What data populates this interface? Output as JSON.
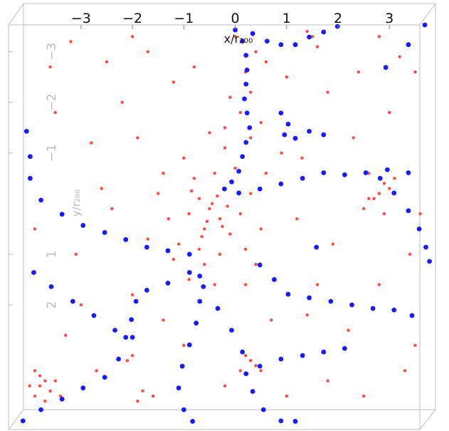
{
  "chart_data": {
    "type": "scatter",
    "x_label": "x/r₂₀₀",
    "y_label": "y/r₂₀₀",
    "xlim": [
      -4.3,
      3.8
    ],
    "ylim": [
      -3.6,
      4.35
    ],
    "y_inverted": true,
    "xticks": [
      {
        "value": -3,
        "label": "−3"
      },
      {
        "value": -2,
        "label": "−2"
      },
      {
        "value": -1,
        "label": "−1"
      },
      0,
      1,
      2,
      3
    ],
    "yticks": [
      {
        "value": -3,
        "label": "−3"
      },
      {
        "value": -2,
        "label": "−2"
      },
      {
        "value": -1,
        "label": "−1"
      },
      1,
      2
    ],
    "series": [
      {
        "color": "#ff2a1f",
        "x": [
          -0.5,
          -0.3,
          -0.7,
          -0.2,
          -0.6,
          -0.9,
          -0.1,
          -0.4,
          -1.1,
          0.1,
          -0.8,
          -0.3,
          -1.3,
          0.3,
          -0.6,
          0.2,
          -1.0,
          -0.2,
          -1.5,
          0.5,
          -0.7,
          -0.45,
          -0.55,
          -0.35,
          -0.65,
          -0.25,
          -0.85,
          -0.15,
          -1.2,
          0.4,
          -0.9,
          -0.5,
          0.0,
          -1.7,
          0.6,
          -0.4,
          -1.4,
          0.2,
          0.1,
          0.3,
          0.2,
          0.4,
          0.0,
          0.6,
          -0.1,
          0.5,
          0.3,
          -0.2,
          1.5,
          1.6,
          1.4,
          2.9,
          3.0,
          2.8,
          2.6,
          2.7,
          3.1,
          2.5,
          2.9,
          2.6,
          -3.8,
          -3.7,
          -3.9,
          -3.6,
          -3.8,
          -3.5,
          -4.0,
          -3.7,
          -3.4,
          -3.9,
          0.3,
          0.4,
          0.2,
          0.5,
          0.1,
          -1.8,
          -1.6,
          -1.9,
          -2.0,
          -2.1,
          -3.2,
          -2.5,
          -1.7,
          -3.5,
          -2.8,
          -2.2,
          -1.2,
          -3.9,
          -3.1,
          -2.4,
          -2.0,
          -3.3,
          -2.7,
          -1.0,
          -0.2,
          1.0,
          1.8,
          2.5,
          3.3,
          3.5,
          2.2,
          1.4,
          2.8,
          3.4,
          1.9,
          1.2,
          2.3,
          3.0,
          3.5,
          2.4,
          1.8,
          2.8,
          1.0,
          -0.8,
          -1.9,
          -2.6,
          -3.0,
          -1.4,
          0.7,
          1.6,
          3.6,
          0.9,
          1.3,
          -3.6,
          -2.0,
          3.2
        ],
        "y": [
          0.1,
          0.3,
          -0.1,
          -0.3,
          0.5,
          0.2,
          0.6,
          -0.6,
          0.8,
          0.2,
          -0.5,
          1.0,
          0.3,
          -0.2,
          1.2,
          0.9,
          -0.9,
          -1.1,
          -0.2,
          0.5,
          0.9,
          0.0,
          0.35,
          -0.15,
          0.65,
          0.45,
          -0.25,
          0.05,
          1.1,
          1.2,
          1.5,
          -1.4,
          -0.7,
          0.7,
          -0.6,
          1.6,
          -0.6,
          1.6,
          -1.8,
          -2.2,
          -2.6,
          -3.0,
          -3.3,
          -2.8,
          -2.1,
          -1.6,
          -1.3,
          -1.5,
          -3.3,
          -3.1,
          -3.4,
          -0.4,
          -0.3,
          -0.2,
          -0.6,
          -0.1,
          -0.5,
          0.1,
          0.2,
          -0.1,
          3.6,
          3.5,
          3.8,
          3.7,
          3.4,
          3.5,
          3.6,
          3.9,
          3.8,
          3.3,
          3.1,
          3.2,
          3.0,
          3.3,
          3.3,
          3.7,
          3.8,
          3.9,
          3.0,
          3.1,
          -3.2,
          -2.8,
          -3.0,
          -1.8,
          -1.2,
          -2.0,
          -2.4,
          0.5,
          1.0,
          0.1,
          1.8,
          2.6,
          3.3,
          2.8,
          3.6,
          3.8,
          3.5,
          3.8,
          3.3,
          2.8,
          2.5,
          2.2,
          1.6,
          1.0,
          0.8,
          0.3,
          -1.3,
          -1.8,
          -2.6,
          -2.6,
          -2.2,
          -3.3,
          -2.5,
          -2.7,
          -1.3,
          -0.3,
          2.0,
          2.3,
          2.3,
          1.6,
          0.2,
          -1.0,
          -0.9,
          -2.7,
          -3.3,
          -2.9
        ]
      },
      {
        "color": "#1a1aff",
        "x": [
          0,
          0.14,
          0.21,
          0.23,
          0.21,
          0.18,
          0.23,
          0.28,
          0.21,
          0.14,
          0.07,
          -0.07,
          -0.21,
          0.34,
          0.62,
          0.89,
          1.17,
          1.44,
          1.72,
          1.99,
          0.07,
          0.48,
          0.89,
          1.31,
          1.72,
          2.13,
          2.54,
          2.96,
          3.37,
          2.82,
          3.09,
          3.37,
          3.58,
          3.71,
          3.78,
          0.48,
          0.76,
          1.03,
          1.44,
          1.86,
          2.27,
          2.68,
          3.09,
          3.44,
          -4.06,
          -3.99,
          -3.99,
          -3.78,
          -3.37,
          -2.96,
          -2.54,
          -2.13,
          -1.72,
          -1.31,
          -0.89,
          -3.92,
          -3.58,
          -3.16,
          -2.75,
          -2.34,
          -2.0,
          -0.89,
          -1.31,
          -1.72,
          -1.93,
          -2.02,
          -2.13,
          -2.27,
          -2.54,
          -2.96,
          -3.37,
          -3.78,
          -4.13,
          -0.69,
          -0.69,
          -0.76,
          -0.89,
          -1.03,
          -1.1,
          -1.0,
          -0.83,
          -0.62,
          -0.34,
          -0.07,
          0.14,
          0.21,
          0.34,
          0.55,
          0.89,
          1.17,
          0.48,
          0.89,
          1.31,
          1.72,
          2.13,
          0.89,
          1.03,
          0.96,
          1.17,
          1.44,
          1.72,
          3.69,
          3.37,
          2.93,
          1.58
        ],
        "y": [
          -3.43,
          -3.21,
          -2.93,
          -2.64,
          -2.36,
          -2.07,
          -1.79,
          -1.5,
          -1.21,
          -0.93,
          -0.64,
          -0.43,
          -0.29,
          -3.36,
          -3.21,
          -3.14,
          -3.14,
          -3.29,
          -3.39,
          -3.5,
          -0.21,
          -0.29,
          -0.39,
          -0.5,
          -0.61,
          -0.57,
          -0.61,
          -0.67,
          -0.61,
          -0.5,
          -0.21,
          0.14,
          0.5,
          0.86,
          1.14,
          1.21,
          1.5,
          1.79,
          1.86,
          1.93,
          2.0,
          2.07,
          2.1,
          2.21,
          -1.43,
          -0.93,
          -0.5,
          -0.07,
          0.21,
          0.43,
          0.57,
          0.71,
          0.86,
          0.93,
          1.0,
          1.36,
          1.64,
          1.93,
          2.21,
          2.5,
          2.64,
          1.36,
          1.57,
          1.71,
          1.93,
          2.29,
          2.64,
          3.07,
          3.43,
          3.64,
          3.86,
          4.07,
          4.29,
          1.43,
          1.93,
          2.36,
          2.79,
          3.21,
          3.64,
          4.07,
          4.3,
          1.64,
          2.07,
          2.5,
          2.93,
          3.36,
          3.71,
          4.07,
          4.29,
          4.3,
          3.21,
          3.07,
          3.0,
          2.93,
          2.86,
          -1.79,
          -1.57,
          -1.36,
          -1.29,
          -1.43,
          -1.36,
          -3.53,
          -3.14,
          -2.69,
          0.86
        ]
      }
    ]
  }
}
